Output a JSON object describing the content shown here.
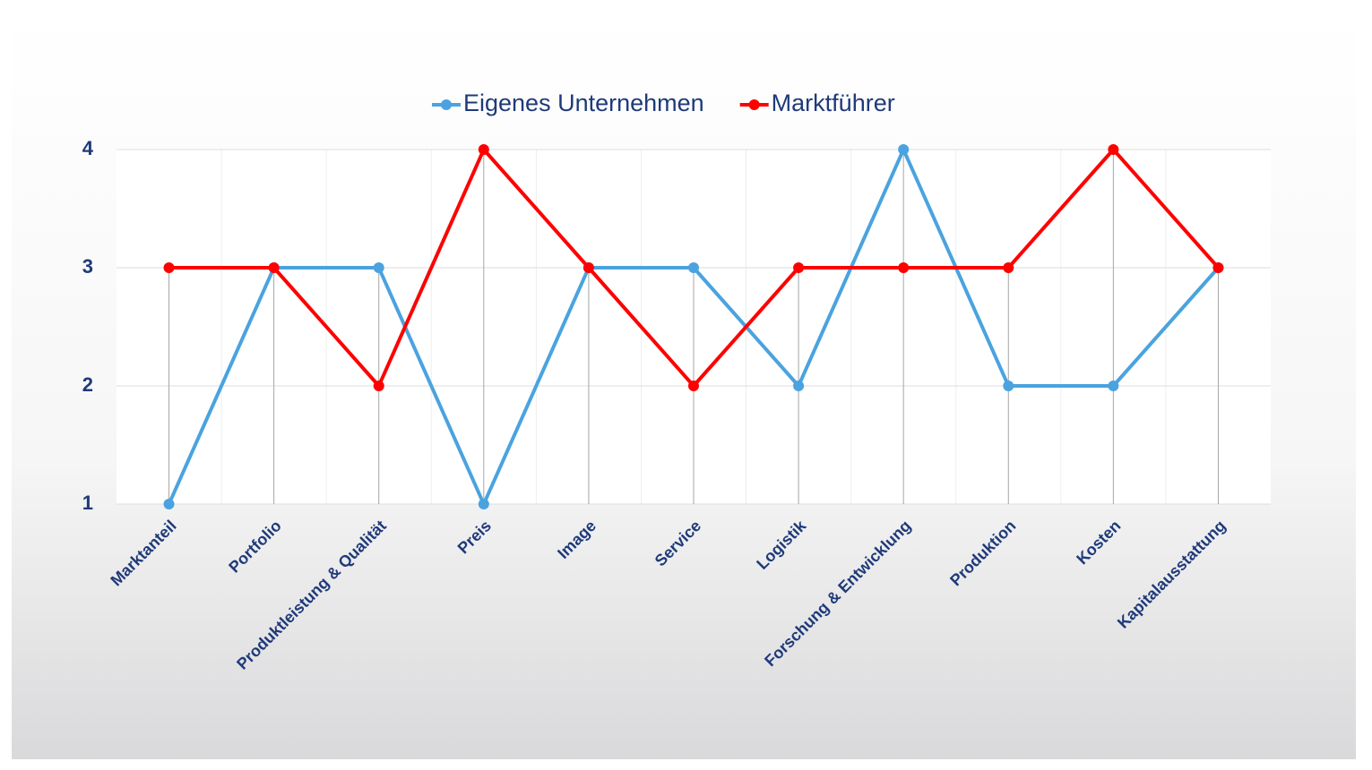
{
  "chart_data": {
    "type": "line",
    "categories": [
      "Marktanteil",
      "Portfolio",
      "Produktleistung & Qualität",
      "Preis",
      "Image",
      "Service",
      "Logistik",
      "Forschung & Entwicklung",
      "Produktion",
      "Kosten",
      "Kapitalausstattung"
    ],
    "series": [
      {
        "name": "Eigenes Unternehmen",
        "color": "#4aa3df",
        "values": [
          1,
          3,
          3,
          1,
          3,
          3,
          2,
          4,
          2,
          2,
          3
        ]
      },
      {
        "name": "Marktführer",
        "color": "#ff0000",
        "values": [
          3,
          3,
          2,
          4,
          3,
          2,
          3,
          3,
          3,
          4,
          3
        ]
      }
    ],
    "ylim": [
      1,
      4
    ],
    "yticks": [
      1,
      2,
      3,
      4
    ],
    "grid": true,
    "legend": "top"
  }
}
